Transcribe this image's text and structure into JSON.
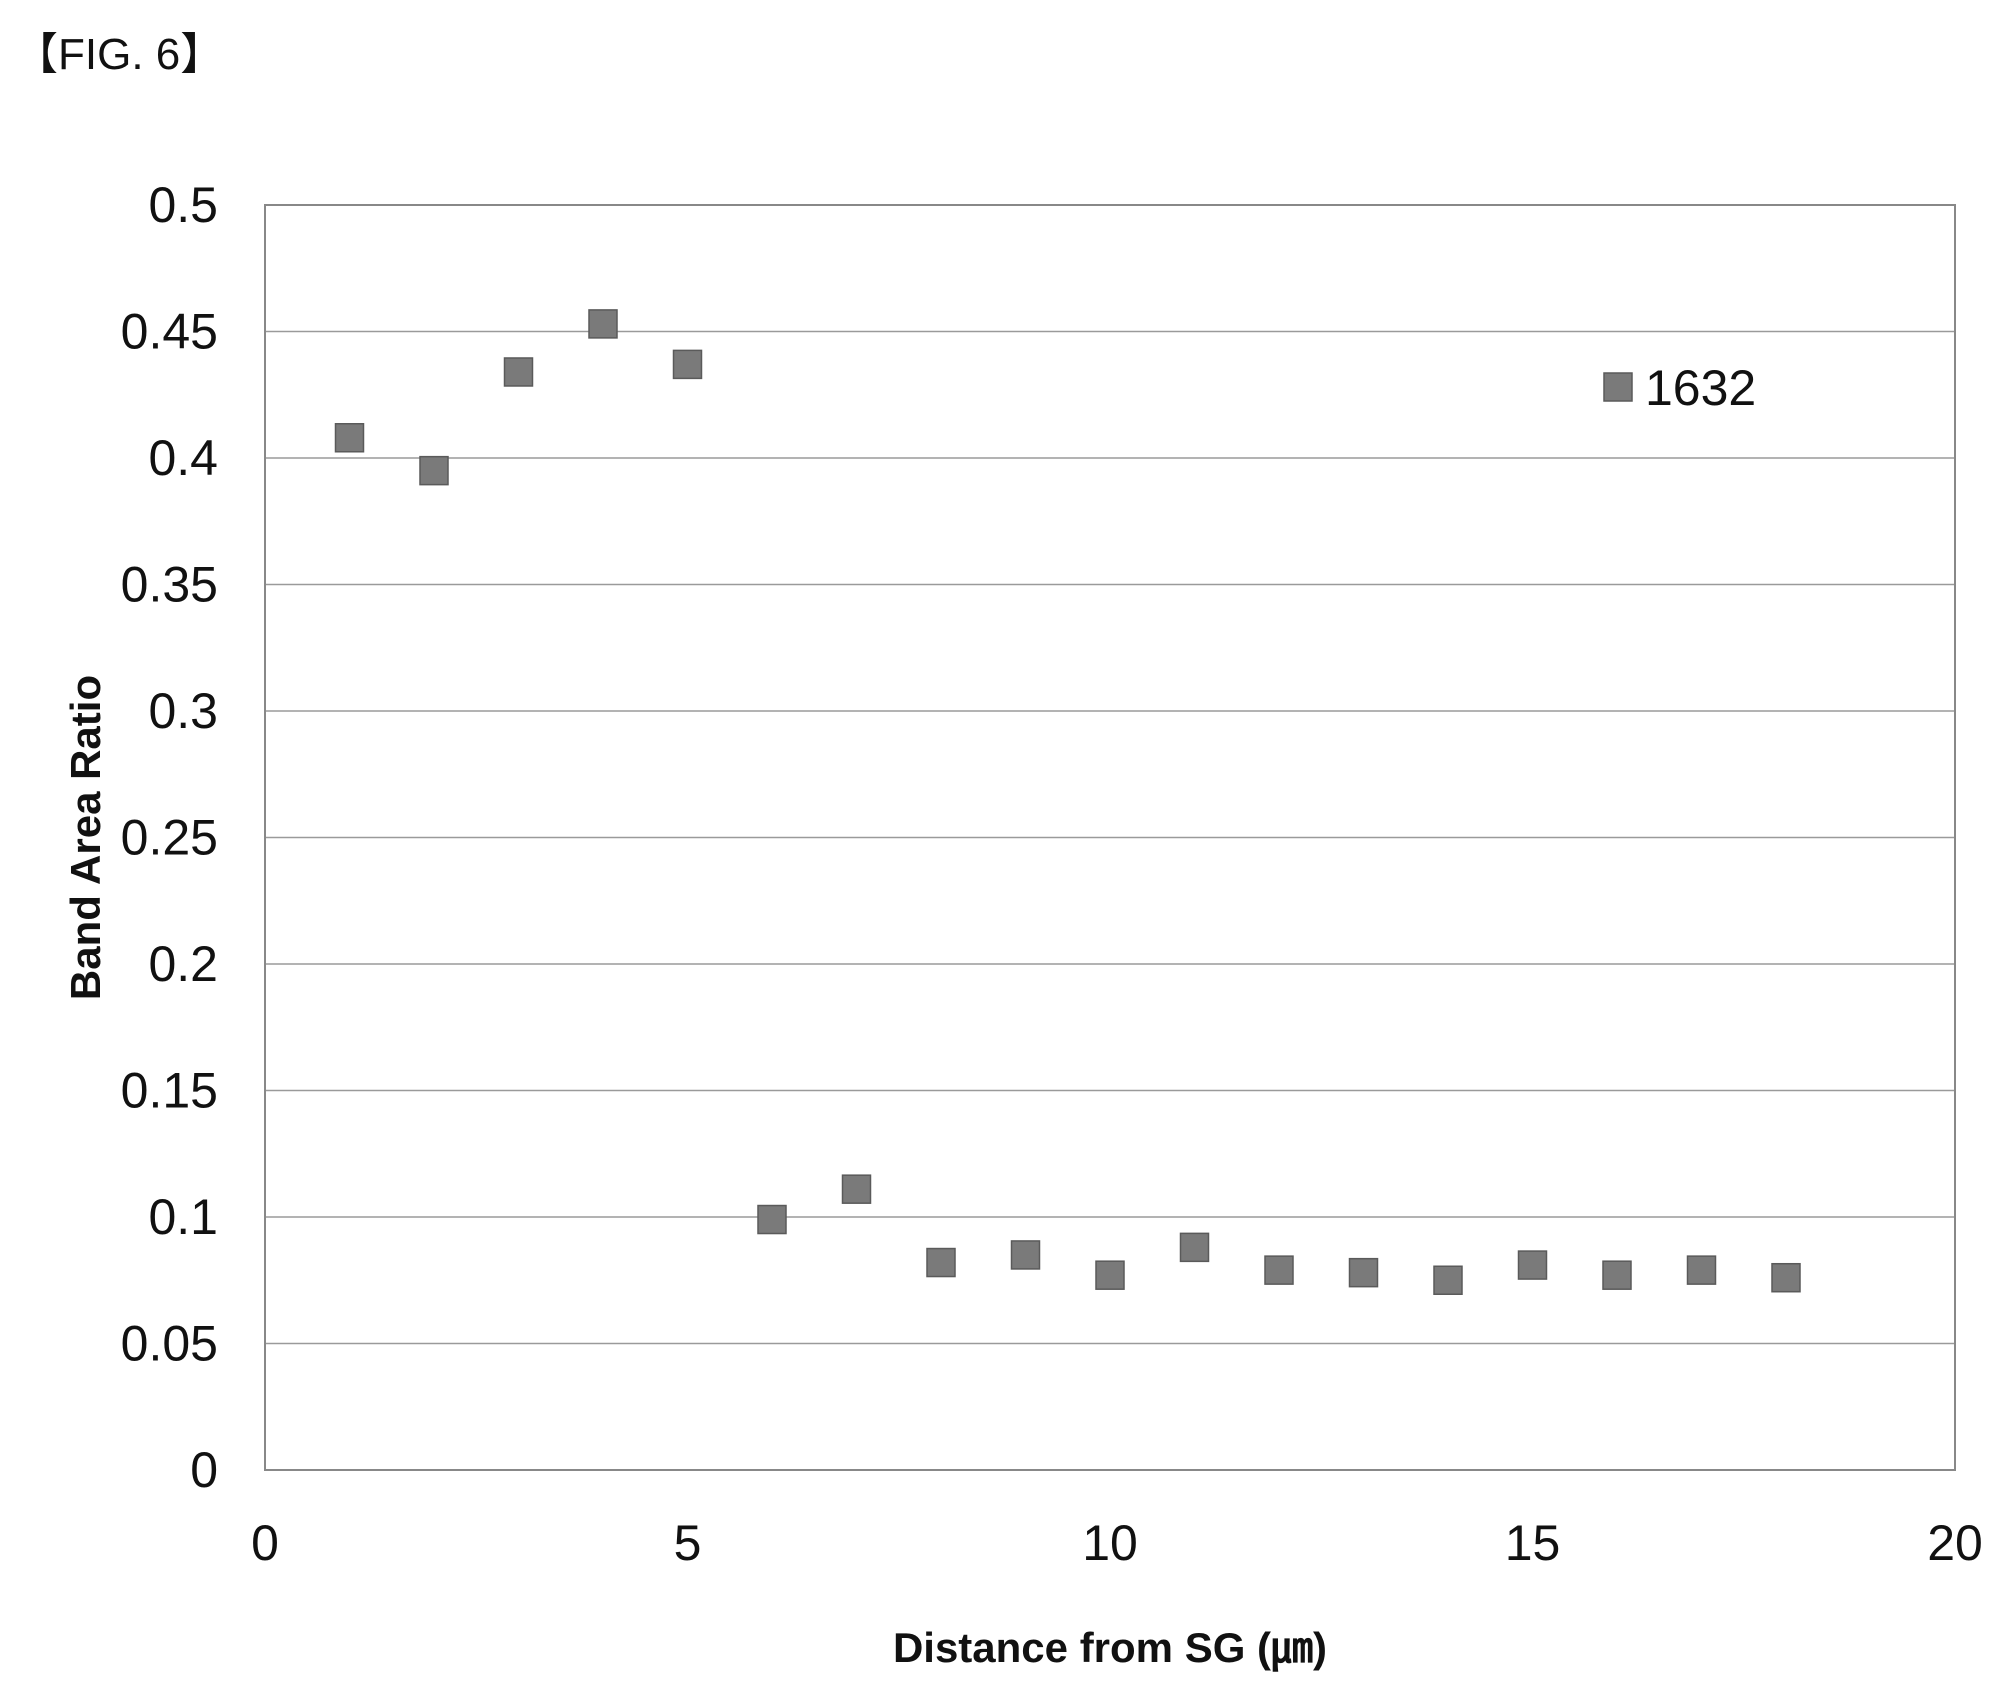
{
  "figure": {
    "label": "【FIG. 6】"
  },
  "chart_data": {
    "type": "scatter",
    "xlabel": "Distance from SG (㎛)",
    "ylabel": "Band Area Ratio",
    "xlim": [
      0,
      20
    ],
    "ylim": [
      0,
      0.5
    ],
    "xticks": [
      "0",
      "5",
      "10",
      "15",
      "20"
    ],
    "yticks": [
      "0",
      "0.05",
      "0.1",
      "0.15",
      "0.2",
      "0.25",
      "0.3",
      "0.35",
      "0.4",
      "0.45",
      "0.5"
    ],
    "grid": "horizontal",
    "legend": "right",
    "series": [
      {
        "name": "1632",
        "color": "#7a7a7a",
        "marker": "square",
        "x": [
          1,
          2,
          3,
          4,
          5,
          6,
          7,
          8,
          9,
          10,
          11,
          12,
          13,
          14,
          15,
          16,
          17,
          18
        ],
        "y": [
          0.408,
          0.395,
          0.434,
          0.453,
          0.437,
          0.099,
          0.111,
          0.082,
          0.085,
          0.077,
          0.088,
          0.079,
          0.078,
          0.075,
          0.081,
          0.077,
          0.079,
          0.076
        ]
      }
    ]
  }
}
